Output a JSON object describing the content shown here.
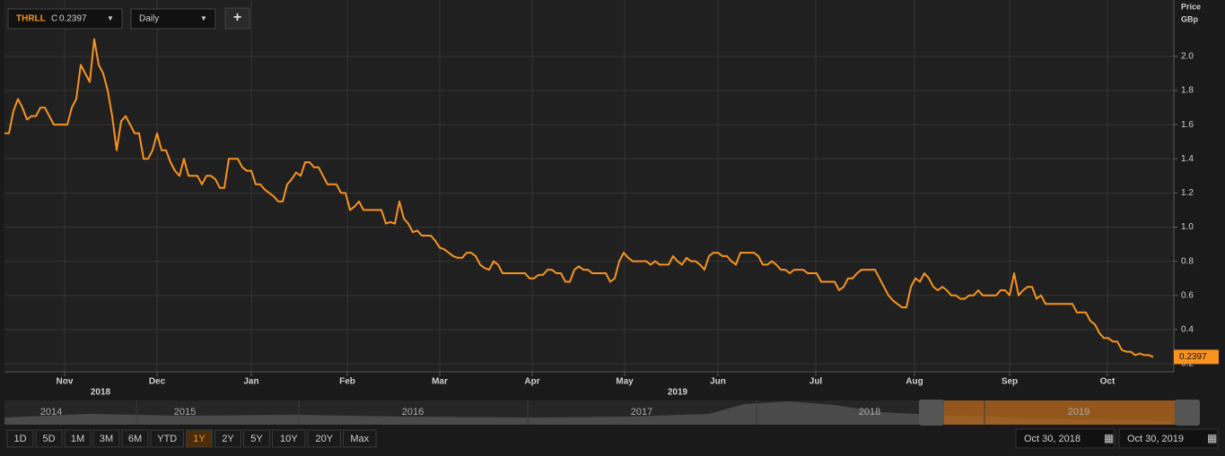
{
  "chart_data": {
    "type": "line",
    "close_prefix": "C",
    "interval": "Daily",
    "add_symbol": "+",
    "y_axis_label": "Price",
    "y_axis_unit": "GBp",
    "series": [
      {
        "name": "THRLL",
        "color": "#f7931e",
        "values": [
          1.55,
          1.55,
          1.68,
          1.75,
          1.7,
          1.63,
          1.65,
          1.65,
          1.7,
          1.7,
          1.65,
          1.6,
          1.6,
          1.6,
          1.6,
          1.7,
          1.75,
          1.95,
          1.9,
          1.85,
          2.1,
          1.95,
          1.9,
          1.8,
          1.65,
          1.45,
          1.62,
          1.65,
          1.6,
          1.55,
          1.55,
          1.4,
          1.4,
          1.45,
          1.55,
          1.45,
          1.45,
          1.38,
          1.33,
          1.3,
          1.4,
          1.3,
          1.3,
          1.3,
          1.25,
          1.3,
          1.3,
          1.28,
          1.23,
          1.23,
          1.4,
          1.4,
          1.4,
          1.35,
          1.33,
          1.33,
          1.25,
          1.25,
          1.22,
          1.2,
          1.18,
          1.15,
          1.15,
          1.25,
          1.28,
          1.32,
          1.3,
          1.38,
          1.38,
          1.35,
          1.35,
          1.3,
          1.25,
          1.25,
          1.25,
          1.2,
          1.2,
          1.1,
          1.12,
          1.15,
          1.1,
          1.1,
          1.1,
          1.1,
          1.1,
          1.02,
          1.03,
          1.02,
          1.15,
          1.05,
          1.02,
          0.97,
          0.98,
          0.95,
          0.95,
          0.95,
          0.92,
          0.88,
          0.87,
          0.85,
          0.83,
          0.82,
          0.82,
          0.85,
          0.85,
          0.83,
          0.78,
          0.76,
          0.75,
          0.8,
          0.78,
          0.73,
          0.73,
          0.73,
          0.73,
          0.73,
          0.73,
          0.7,
          0.7,
          0.72,
          0.72,
          0.75,
          0.75,
          0.73,
          0.73,
          0.68,
          0.68,
          0.75,
          0.77,
          0.75,
          0.75,
          0.73,
          0.73,
          0.73,
          0.73,
          0.68,
          0.7,
          0.8,
          0.85,
          0.82,
          0.8,
          0.8,
          0.8,
          0.8,
          0.78,
          0.8,
          0.78,
          0.78,
          0.78,
          0.83,
          0.8,
          0.78,
          0.82,
          0.8,
          0.8,
          0.78,
          0.75,
          0.83,
          0.85,
          0.85,
          0.83,
          0.83,
          0.8,
          0.78,
          0.85,
          0.85,
          0.85,
          0.85,
          0.83,
          0.78,
          0.78,
          0.8,
          0.78,
          0.75,
          0.75,
          0.73,
          0.75,
          0.75,
          0.75,
          0.73,
          0.73,
          0.73,
          0.68,
          0.68,
          0.68,
          0.68,
          0.63,
          0.65,
          0.7,
          0.7,
          0.73,
          0.75,
          0.75,
          0.75,
          0.75,
          0.7,
          0.65,
          0.6,
          0.57,
          0.55,
          0.53,
          0.53,
          0.65,
          0.7,
          0.68,
          0.73,
          0.7,
          0.65,
          0.63,
          0.65,
          0.63,
          0.6,
          0.6,
          0.58,
          0.58,
          0.6,
          0.6,
          0.63,
          0.6,
          0.6,
          0.6,
          0.6,
          0.63,
          0.63,
          0.6,
          0.73,
          0.6,
          0.63,
          0.65,
          0.65,
          0.58,
          0.6,
          0.55,
          0.55,
          0.55,
          0.55,
          0.55,
          0.55,
          0.55,
          0.5,
          0.5,
          0.5,
          0.45,
          0.43,
          0.38,
          0.35,
          0.35,
          0.33,
          0.33,
          0.28,
          0.27,
          0.27,
          0.25,
          0.26,
          0.25,
          0.25,
          0.2397
        ]
      }
    ],
    "xlim": [
      0,
      256
    ],
    "xticks": [
      {
        "value": 13.4,
        "label": "Nov"
      },
      {
        "value": 34,
        "label": "Dec"
      },
      {
        "value": 55,
        "label": "Jan"
      },
      {
        "value": 76.4,
        "label": "Feb"
      },
      {
        "value": 97,
        "label": "Mar"
      },
      {
        "value": 117.6,
        "label": "Apr"
      },
      {
        "value": 138.2,
        "label": "May"
      },
      {
        "value": 159,
        "label": "Jun"
      },
      {
        "value": 180.8,
        "label": "Jul"
      },
      {
        "value": 202.8,
        "label": "Aug"
      },
      {
        "value": 224,
        "label": "Sep"
      },
      {
        "value": 245.8,
        "label": "Oct"
      }
    ],
    "year_labels": [
      {
        "value": 21.4,
        "label": "2018"
      },
      {
        "value": 150,
        "label": "2019"
      }
    ],
    "ylim": [
      0.15,
      2.33
    ],
    "yticks": [
      0.2,
      0.4,
      0.6,
      0.8,
      {
        "value": 1,
        "label": "1.0"
      },
      1.2,
      1.4,
      1.6,
      1.8,
      {
        "value": 2,
        "label": "2.0"
      }
    ],
    "grid": true,
    "navigator_years": [
      "2014",
      "2015",
      "2016",
      "2017",
      "2018",
      "2019"
    ],
    "range_buttons": [
      "1D",
      "5D",
      "1M",
      "3M",
      "6M",
      "YTD",
      "1Y",
      "2Y",
      "5Y",
      "10Y",
      "20Y",
      "Max"
    ],
    "selected_range": "1Y",
    "date_from": "Oct 30, 2018",
    "date_to": "Oct 30, 2019"
  }
}
